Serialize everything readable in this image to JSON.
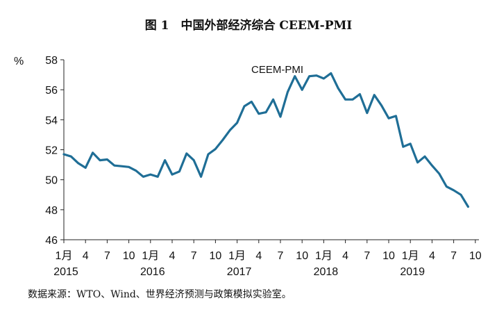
{
  "title": "图 1　中国外部经济综合 CEEM-PMI",
  "source": "数据来源：WTO、Wind、世界经济预测与政策模拟实验室。",
  "chart_data": {
    "type": "line",
    "title": "图 1　中国外部经济综合 CEEM-PMI",
    "ylabel": "%",
    "ylim": [
      46,
      58
    ],
    "yticks": [
      46,
      48,
      50,
      52,
      54,
      56,
      58
    ],
    "grid": false,
    "x_tick_labels": [
      "1月",
      "4",
      "7",
      "10",
      "1月",
      "4",
      "7",
      "10",
      "1月",
      "4",
      "7",
      "10",
      "1月",
      "4",
      "7",
      "10",
      "1月",
      "4",
      "7",
      "10"
    ],
    "x_year_labels": [
      "2015",
      "2016",
      "2017",
      "2018",
      "2019"
    ],
    "annotation": "CEEM-PMI",
    "line_color": "#1f6e96",
    "series": [
      {
        "name": "CEEM-PMI",
        "x": [
          "2015-01",
          "2015-02",
          "2015-03",
          "2015-04",
          "2015-05",
          "2015-06",
          "2015-07",
          "2015-08",
          "2015-09",
          "2015-10",
          "2015-11",
          "2015-12",
          "2016-01",
          "2016-02",
          "2016-03",
          "2016-04",
          "2016-05",
          "2016-06",
          "2016-07",
          "2016-08",
          "2016-09",
          "2016-10",
          "2016-11",
          "2016-12",
          "2017-01",
          "2017-02",
          "2017-03",
          "2017-04",
          "2017-05",
          "2017-06",
          "2017-07",
          "2017-08",
          "2017-09",
          "2017-10",
          "2017-11",
          "2017-12",
          "2018-01",
          "2018-02",
          "2018-03",
          "2018-04",
          "2018-05",
          "2018-06",
          "2018-07",
          "2018-08",
          "2018-09",
          "2018-10",
          "2018-11",
          "2018-12",
          "2019-01",
          "2019-02",
          "2019-03",
          "2019-04",
          "2019-05",
          "2019-06",
          "2019-07",
          "2019-08",
          "2019-09"
        ],
        "values": [
          51.7,
          51.55,
          51.1,
          50.8,
          51.8,
          51.3,
          51.35,
          50.95,
          50.9,
          50.85,
          50.6,
          50.2,
          50.35,
          50.2,
          51.3,
          50.35,
          50.55,
          51.75,
          51.3,
          50.2,
          51.7,
          52.05,
          52.65,
          53.3,
          53.8,
          54.9,
          55.2,
          54.4,
          54.5,
          55.35,
          54.2,
          55.85,
          56.9,
          56.0,
          56.9,
          56.95,
          56.75,
          57.1,
          56.1,
          55.35,
          55.35,
          55.7,
          54.45,
          55.65,
          54.95,
          54.1,
          54.25,
          52.2,
          52.4,
          51.15,
          51.55,
          50.95,
          50.4,
          49.55,
          49.3,
          49.0,
          48.2
        ]
      }
    ]
  }
}
